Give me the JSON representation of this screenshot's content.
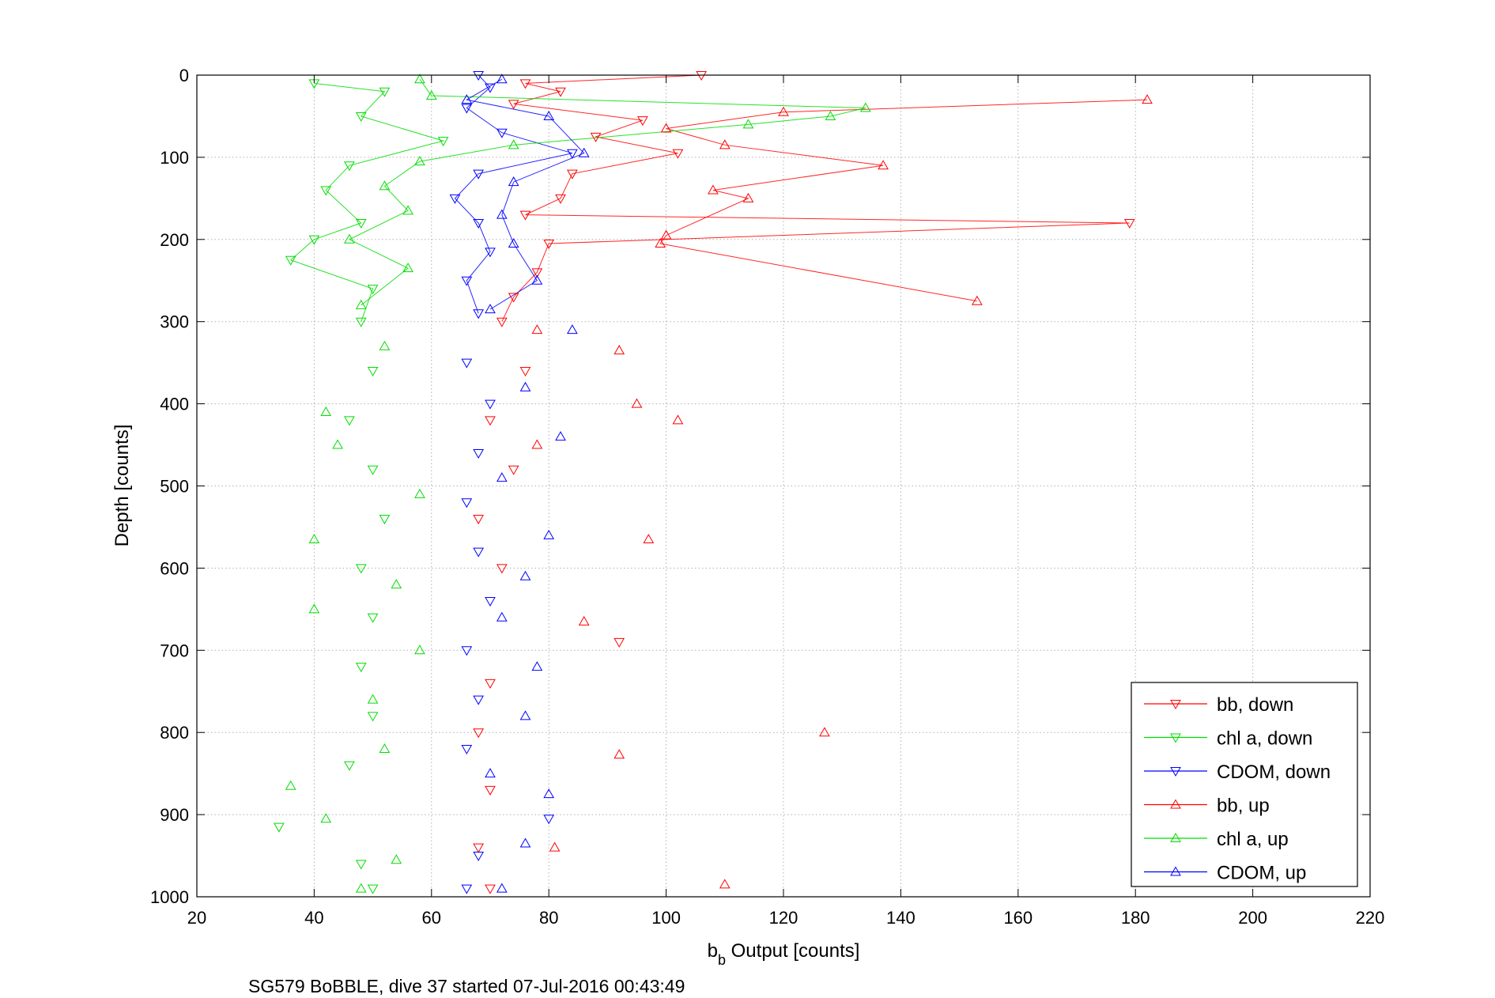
{
  "chart_data": {
    "type": "scatter",
    "title": "",
    "xlabel_main": "b",
    "xlabel_sub": "b",
    "xlabel_rest": " Output [counts]",
    "ylabel": "Depth [counts]",
    "caption": "SG579 BoBBLE, dive 37 started 07-Jul-2016 00:43:49",
    "xlim": [
      20,
      220
    ],
    "ylim": [
      1000,
      0
    ],
    "y_reversed": true,
    "grid": true,
    "xticks": [
      "20",
      "40",
      "60",
      "80",
      "100",
      "120",
      "140",
      "160",
      "180",
      "200",
      "220"
    ],
    "yticks": [
      "0",
      "100",
      "200",
      "300",
      "400",
      "500",
      "600",
      "700",
      "800",
      "900",
      "1000"
    ],
    "legend_position": "bottom-right",
    "colors": {
      "bb": "#ff0000",
      "chl": "#00dd00",
      "cdom": "#0000ff"
    },
    "series": [
      {
        "name": "bb, down",
        "color": "#ff0000",
        "marker": "triangle-down",
        "points": [
          [
            106,
            0
          ],
          [
            76,
            10
          ],
          [
            82,
            20
          ],
          [
            74,
            35
          ],
          [
            96,
            55
          ],
          [
            88,
            75
          ],
          [
            102,
            95
          ],
          [
            84,
            120
          ],
          [
            82,
            150
          ],
          [
            76,
            170
          ],
          [
            179,
            180
          ],
          [
            80,
            205
          ],
          [
            78,
            240
          ],
          [
            74,
            270
          ],
          [
            72,
            300
          ],
          [
            76,
            360
          ],
          [
            70,
            420
          ],
          [
            74,
            480
          ],
          [
            68,
            540
          ],
          [
            72,
            600
          ],
          [
            92,
            690
          ],
          [
            70,
            740
          ],
          [
            68,
            800
          ],
          [
            70,
            870
          ],
          [
            68,
            940
          ],
          [
            70,
            990
          ]
        ]
      },
      {
        "name": "chl a, down",
        "color": "#00dd00",
        "marker": "triangle-down",
        "points": [
          [
            40,
            10
          ],
          [
            52,
            20
          ],
          [
            48,
            50
          ],
          [
            62,
            80
          ],
          [
            46,
            110
          ],
          [
            42,
            140
          ],
          [
            48,
            180
          ],
          [
            40,
            200
          ],
          [
            36,
            225
          ],
          [
            50,
            260
          ],
          [
            48,
            300
          ],
          [
            50,
            360
          ],
          [
            46,
            420
          ],
          [
            50,
            480
          ],
          [
            52,
            540
          ],
          [
            48,
            600
          ],
          [
            50,
            660
          ],
          [
            48,
            720
          ],
          [
            50,
            780
          ],
          [
            46,
            840
          ],
          [
            34,
            915
          ],
          [
            48,
            960
          ],
          [
            50,
            990
          ]
        ]
      },
      {
        "name": "CDOM, down",
        "color": "#0000ff",
        "marker": "triangle-down",
        "points": [
          [
            68,
            0
          ],
          [
            70,
            15
          ],
          [
            66,
            40
          ],
          [
            72,
            70
          ],
          [
            84,
            95
          ],
          [
            68,
            120
          ],
          [
            64,
            150
          ],
          [
            68,
            180
          ],
          [
            70,
            215
          ],
          [
            66,
            250
          ],
          [
            68,
            290
          ],
          [
            66,
            350
          ],
          [
            70,
            400
          ],
          [
            68,
            460
          ],
          [
            66,
            520
          ],
          [
            68,
            580
          ],
          [
            70,
            640
          ],
          [
            66,
            700
          ],
          [
            68,
            760
          ],
          [
            66,
            820
          ],
          [
            80,
            905
          ],
          [
            68,
            950
          ],
          [
            66,
            990
          ]
        ]
      },
      {
        "name": "bb, up",
        "color": "#ff0000",
        "marker": "triangle-up",
        "points": [
          [
            182,
            30
          ],
          [
            120,
            45
          ],
          [
            100,
            65
          ],
          [
            110,
            85
          ],
          [
            137,
            110
          ],
          [
            108,
            140
          ],
          [
            114,
            150
          ],
          [
            100,
            195
          ],
          [
            99,
            205
          ],
          [
            153,
            275
          ],
          [
            78,
            310
          ],
          [
            92,
            335
          ],
          [
            95,
            400
          ],
          [
            102,
            420
          ],
          [
            78,
            450
          ],
          [
            97,
            565
          ],
          [
            86,
            665
          ],
          [
            127,
            800
          ],
          [
            92,
            827
          ],
          [
            81,
            940
          ],
          [
            110,
            985
          ]
        ]
      },
      {
        "name": "chl a, up",
        "color": "#00dd00",
        "marker": "triangle-up",
        "points": [
          [
            58,
            5
          ],
          [
            60,
            25
          ],
          [
            134,
            40
          ],
          [
            128,
            50
          ],
          [
            114,
            60
          ],
          [
            74,
            85
          ],
          [
            58,
            105
          ],
          [
            52,
            135
          ],
          [
            56,
            165
          ],
          [
            46,
            200
          ],
          [
            56,
            235
          ],
          [
            48,
            280
          ],
          [
            52,
            330
          ],
          [
            42,
            410
          ],
          [
            44,
            450
          ],
          [
            58,
            510
          ],
          [
            40,
            565
          ],
          [
            54,
            620
          ],
          [
            40,
            650
          ],
          [
            58,
            700
          ],
          [
            50,
            760
          ],
          [
            52,
            820
          ],
          [
            36,
            865
          ],
          [
            42,
            905
          ],
          [
            54,
            955
          ],
          [
            48,
            990
          ]
        ]
      },
      {
        "name": "CDOM, up",
        "color": "#0000ff",
        "marker": "triangle-up",
        "points": [
          [
            72,
            5
          ],
          [
            66,
            30
          ],
          [
            80,
            50
          ],
          [
            86,
            95
          ],
          [
            74,
            130
          ],
          [
            72,
            170
          ],
          [
            74,
            205
          ],
          [
            78,
            250
          ],
          [
            70,
            285
          ],
          [
            84,
            310
          ],
          [
            76,
            380
          ],
          [
            82,
            440
          ],
          [
            72,
            490
          ],
          [
            80,
            560
          ],
          [
            76,
            610
          ],
          [
            72,
            660
          ],
          [
            78,
            720
          ],
          [
            76,
            780
          ],
          [
            70,
            850
          ],
          [
            80,
            875
          ],
          [
            76,
            935
          ],
          [
            72,
            990
          ]
        ]
      }
    ]
  }
}
